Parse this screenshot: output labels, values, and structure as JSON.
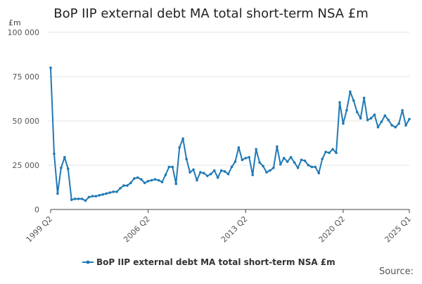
{
  "chart_data": {
    "type": "line",
    "title": "BoP IIP external debt MA total short-term NSA £m",
    "yunit": "£m",
    "ylim": [
      0,
      100000
    ],
    "yticks": [
      0,
      25000,
      50000,
      75000,
      100000
    ],
    "ytick_labels": [
      "0",
      "25 000",
      "50 000",
      "75 000",
      "100 000"
    ],
    "xtick_labels": [
      "1999 Q2",
      "2006 Q2",
      "2013 Q2",
      "2020 Q2",
      "2025 Q1"
    ],
    "xtick_index": [
      0,
      28,
      56,
      84,
      103
    ],
    "grid": true,
    "legend_position": "bottom",
    "source_label": "Source:",
    "series": [
      {
        "name": "BoP IIP external debt MA total short-term NSA £m",
        "color": "#1f7ab5",
        "values": [
          80000,
          31500,
          9000,
          23500,
          29500,
          23000,
          5500,
          6000,
          6000,
          6000,
          5000,
          7000,
          7500,
          7500,
          8000,
          8500,
          9000,
          9500,
          10000,
          10000,
          12000,
          13500,
          13500,
          15000,
          17500,
          18000,
          17000,
          15000,
          16000,
          16500,
          17000,
          16500,
          15500,
          19500,
          24000,
          24000,
          14500,
          35000,
          40000,
          28500,
          21000,
          22500,
          16500,
          21000,
          20500,
          19000,
          20000,
          22000,
          18000,
          22000,
          21500,
          20000,
          24000,
          27000,
          35000,
          28000,
          29000,
          29500,
          19500,
          34000,
          26500,
          24500,
          21000,
          22000,
          23500,
          35500,
          25500,
          29000,
          27000,
          29500,
          26500,
          23500,
          28000,
          27500,
          25000,
          24000,
          24000,
          20500,
          28500,
          32500,
          32000,
          34000,
          32000,
          60500,
          48500,
          56000,
          66500,
          61500,
          55000,
          51500,
          63000,
          50500,
          51500,
          53500,
          46500,
          49500,
          53000,
          50500,
          47500,
          46500,
          48500,
          56000,
          47500,
          51000
        ]
      }
    ]
  }
}
